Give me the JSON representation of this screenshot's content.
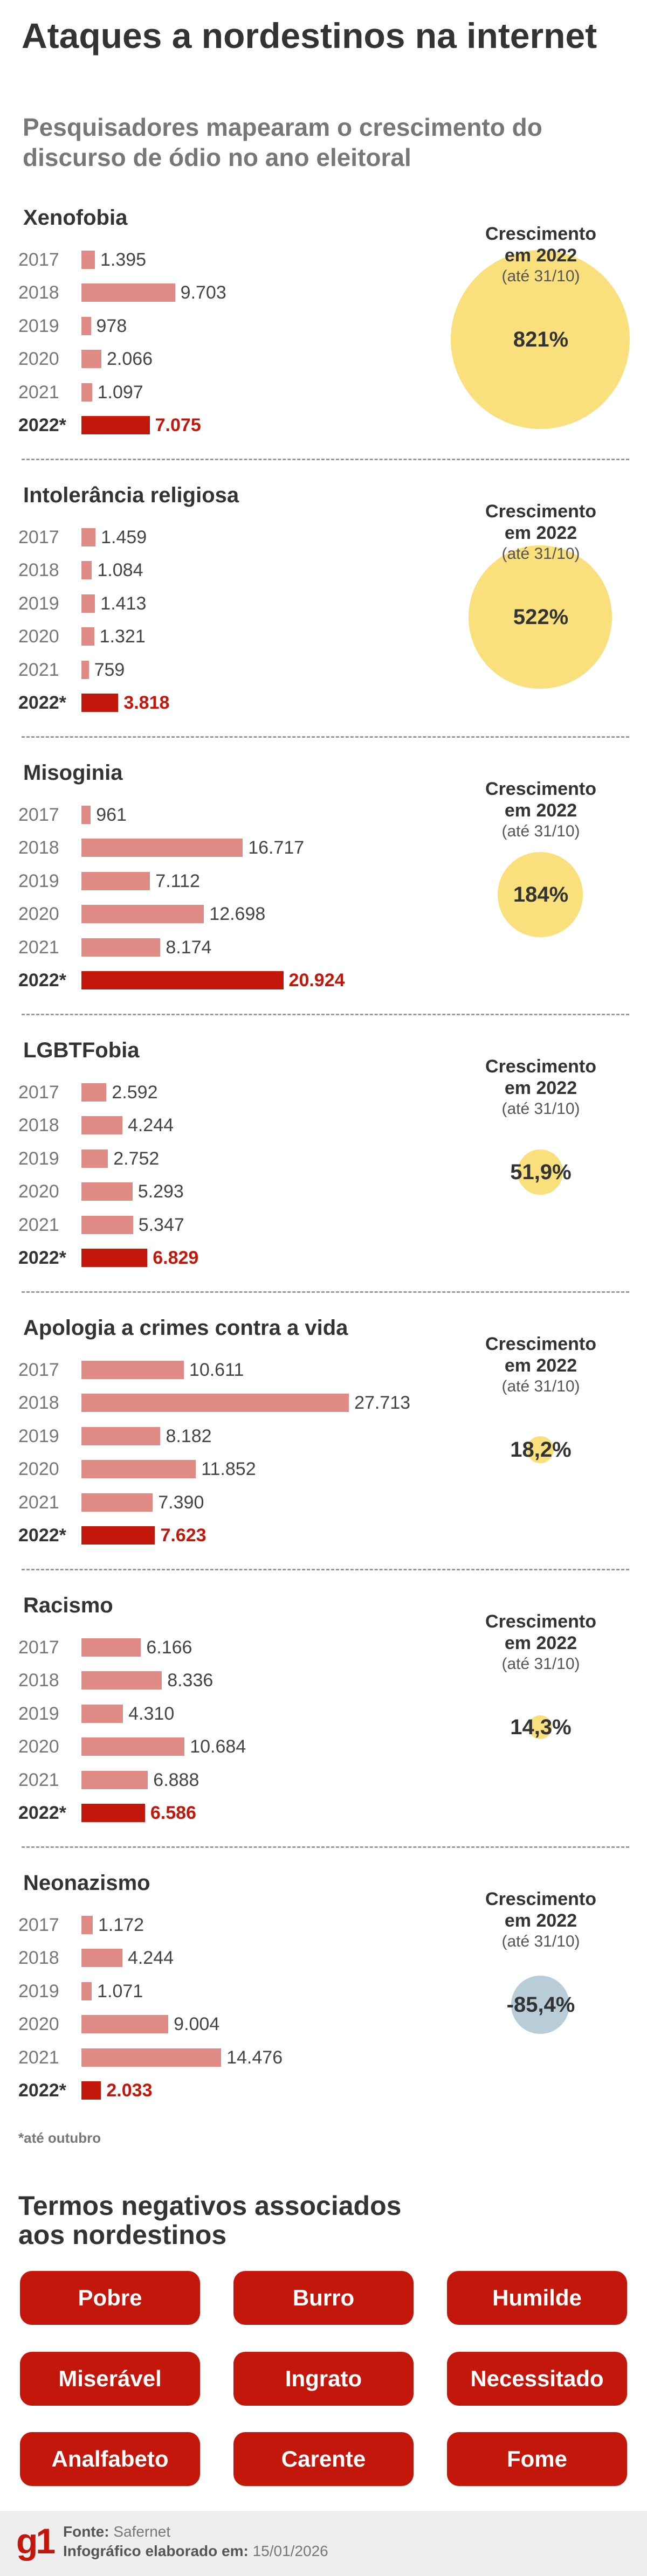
{
  "header": {
    "title": "Ataques a nordestinos na internet",
    "subtitle": "Pesquisadores mapearam o crescimento do discurso de ódio no ano eleitoral"
  },
  "growth_caption": {
    "line1": "Crescimento",
    "line2": "em 2022",
    "line3": "(até 31/10)"
  },
  "colors": {
    "bar_previous": "#e08a85",
    "bar_2022": "#c4170c",
    "growth_positive": "#fae07c",
    "growth_negative": "#b8cdd8"
  },
  "chart_data": [
    {
      "type": "bar",
      "title": "Xenofobia",
      "categories": [
        "2017",
        "2018",
        "2019",
        "2020",
        "2021",
        "2022*"
      ],
      "values": [
        1395,
        9703,
        978,
        2066,
        1097,
        7075
      ],
      "labels": [
        "1.395",
        "9.703",
        "978",
        "2.066",
        "1.097",
        "7.075"
      ],
      "growth": 821,
      "growth_label": "821%"
    },
    {
      "type": "bar",
      "title": "Intolerância religiosa",
      "categories": [
        "2017",
        "2018",
        "2019",
        "2020",
        "2021",
        "2022*"
      ],
      "values": [
        1459,
        1084,
        1413,
        1321,
        759,
        3818
      ],
      "labels": [
        "1.459",
        "1.084",
        "1.413",
        "1.321",
        "759",
        "3.818"
      ],
      "growth": 522,
      "growth_label": "522%"
    },
    {
      "type": "bar",
      "title": "Misoginia",
      "categories": [
        "2017",
        "2018",
        "2019",
        "2020",
        "2021",
        "2022*"
      ],
      "values": [
        961,
        16717,
        7112,
        12698,
        8174,
        20924
      ],
      "labels": [
        "961",
        "16.717",
        "7.112",
        "12.698",
        "8.174",
        "20.924"
      ],
      "growth": 184,
      "growth_label": "184%"
    },
    {
      "type": "bar",
      "title": "LGBTFobia",
      "categories": [
        "2017",
        "2018",
        "2019",
        "2020",
        "2021",
        "2022*"
      ],
      "values": [
        2592,
        4244,
        2752,
        5293,
        5347,
        6829
      ],
      "labels": [
        "2.592",
        "4.244",
        "2.752",
        "5.293",
        "5.347",
        "6.829"
      ],
      "growth": 51.9,
      "growth_label": "51,9%"
    },
    {
      "type": "bar",
      "title": "Apologia a crimes contra a vida",
      "categories": [
        "2017",
        "2018",
        "2019",
        "2020",
        "2021",
        "2022*"
      ],
      "values": [
        10611,
        27713,
        8182,
        11852,
        7390,
        7623
      ],
      "labels": [
        "10.611",
        "27.713",
        "8.182",
        "11.852",
        "7.390",
        "7.623"
      ],
      "growth": 18.2,
      "growth_label": "18,2%"
    },
    {
      "type": "bar",
      "title": "Racismo",
      "categories": [
        "2017",
        "2018",
        "2019",
        "2020",
        "2021",
        "2022*"
      ],
      "values": [
        6166,
        8336,
        4310,
        10684,
        6888,
        6586
      ],
      "labels": [
        "6.166",
        "8.336",
        "4.310",
        "10.684",
        "6.888",
        "6.586"
      ],
      "growth": 14.3,
      "growth_label": "14,3%"
    },
    {
      "type": "bar",
      "title": "Neonazismo",
      "categories": [
        "2017",
        "2018",
        "2019",
        "2020",
        "2021",
        "2022*"
      ],
      "values": [
        1172,
        4244,
        1071,
        9004,
        14476,
        2033
      ],
      "labels": [
        "1.172",
        "4.244",
        "1.071",
        "9.004",
        "14.476",
        "2.033"
      ],
      "growth": -85.4,
      "growth_label": "-85,4%"
    }
  ],
  "footnote": "*até outubro",
  "terms": {
    "title": "Termos negativos associados aos nordestinos",
    "items": [
      "Pobre",
      "Burro",
      "Humilde",
      "Miserável",
      "Ingrato",
      "Necessitado",
      "Analfabeto",
      "Carente",
      "Fome"
    ]
  },
  "footer": {
    "logo": "g1",
    "source_label": "Fonte:",
    "source_value": "Safernet",
    "date_label": "Infográfico elaborado em:",
    "date_value": "15/01/2026"
  }
}
